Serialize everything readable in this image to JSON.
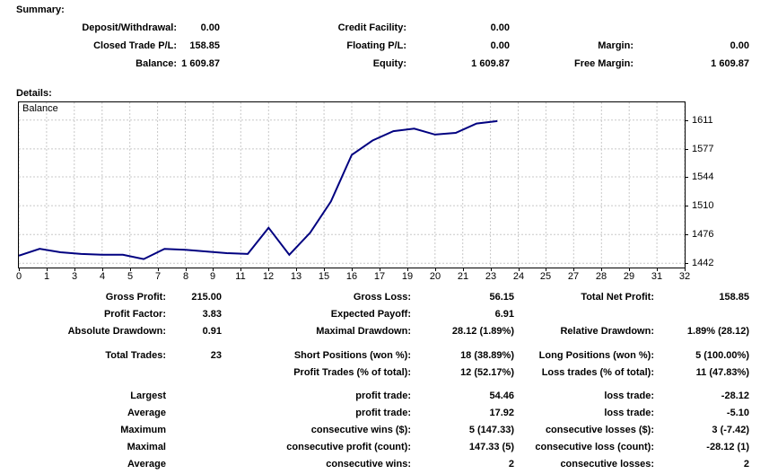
{
  "summary": {
    "title": "Summary:",
    "deposit_withdrawal": {
      "label": "Deposit/Withdrawal:",
      "value": "0.00"
    },
    "credit_facility": {
      "label": "Credit Facility:",
      "value": "0.00"
    },
    "closed_trade_pl": {
      "label": "Closed Trade P/L:",
      "value": "158.85"
    },
    "floating_pl": {
      "label": "Floating P/L:",
      "value": "0.00"
    },
    "margin": {
      "label": "Margin:",
      "value": "0.00"
    },
    "balance": {
      "label": "Balance:",
      "value": "1 609.87"
    },
    "equity": {
      "label": "Equity:",
      "value": "1 609.87"
    },
    "free_margin": {
      "label": "Free Margin:",
      "value": "1 609.87"
    }
  },
  "details": {
    "title": "Details:",
    "gross_profit": {
      "label": "Gross Profit:",
      "value": "215.00"
    },
    "gross_loss": {
      "label": "Gross Loss:",
      "value": "56.15"
    },
    "total_net_profit": {
      "label": "Total Net Profit:",
      "value": "158.85"
    },
    "profit_factor": {
      "label": "Profit Factor:",
      "value": "3.83"
    },
    "expected_payoff": {
      "label": "Expected Payoff:",
      "value": "6.91"
    },
    "absolute_drawdown": {
      "label": "Absolute Drawdown:",
      "value": "0.91"
    },
    "maximal_drawdown": {
      "label": "Maximal Drawdown:",
      "value": "28.12 (1.89%)"
    },
    "relative_drawdown": {
      "label": "Relative Drawdown:",
      "value": "1.89% (28.12)"
    },
    "total_trades": {
      "label": "Total Trades:",
      "value": "23"
    },
    "short_positions": {
      "label": "Short Positions (won %):",
      "value": "18 (38.89%)"
    },
    "long_positions": {
      "label": "Long Positions (won %):",
      "value": "5 (100.00%)"
    },
    "profit_trades": {
      "label": "Profit Trades (% of total):",
      "value": "12 (52.17%)"
    },
    "loss_trades": {
      "label": "Loss trades (% of total):",
      "value": "11 (47.83%)"
    },
    "largest": {
      "row_label": "Largest",
      "profit_label": "profit trade:",
      "profit_value": "54.46",
      "loss_label": "loss trade:",
      "loss_value": "-28.12"
    },
    "average": {
      "row_label": "Average",
      "profit_label": "profit trade:",
      "profit_value": "17.92",
      "loss_label": "loss trade:",
      "loss_value": "-5.10"
    },
    "maximum": {
      "row_label": "Maximum",
      "wins_label": "consecutive wins ($):",
      "wins_value": "5 (147.33)",
      "losses_label": "consecutive losses ($):",
      "losses_value": "3 (-7.42)"
    },
    "maximal": {
      "row_label": "Maximal",
      "profit_label": "consecutive profit (count):",
      "profit_value": "147.33 (5)",
      "loss_label": "consecutive loss (count):",
      "loss_value": "-28.12 (1)"
    },
    "average_consecutive": {
      "row_label": "Average",
      "wins_label": "consecutive wins:",
      "wins_value": "2",
      "losses_label": "consecutive losses:",
      "losses_value": "2"
    }
  },
  "chart_data": {
    "type": "line",
    "title": "Balance",
    "legend_position": "top-left",
    "x": [
      0,
      1,
      2,
      3,
      4,
      5,
      6,
      7,
      8,
      9,
      10,
      11,
      12,
      13,
      14,
      15,
      16,
      17,
      18,
      19,
      20,
      21,
      22,
      23
    ],
    "values": [
      1451,
      1459,
      1455,
      1453,
      1452,
      1452,
      1447,
      1459,
      1458,
      1456,
      1454,
      1453,
      1484,
      1452,
      1478,
      1515,
      1570,
      1587,
      1598,
      1601,
      1594,
      1596,
      1607,
      1609.87
    ],
    "x_ticks": [
      0,
      1,
      3,
      4,
      5,
      7,
      8,
      9,
      11,
      12,
      13,
      15,
      16,
      17,
      19,
      20,
      21,
      23,
      24,
      25,
      27,
      28,
      29,
      31,
      32
    ],
    "y_ticks": [
      1611,
      1577,
      1544,
      1510,
      1476,
      1442
    ],
    "x_axis_max": 32,
    "ylim": [
      1437,
      1632
    ],
    "grid": true,
    "line_color": "#000080",
    "grid_color": "#c8c8c8",
    "axis_color": "#000000"
  }
}
